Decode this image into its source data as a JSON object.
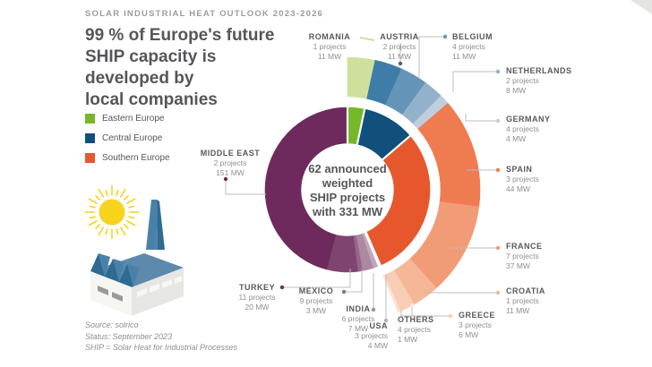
{
  "header": {
    "kicker": "SOLAR INDUSTRIAL HEAT OUTLOOK 2023-2026",
    "headline_lines": [
      "99 % of Europe's future",
      "SHIP capacity is",
      "developed by",
      "local companies"
    ]
  },
  "legend": {
    "items": [
      {
        "label": "Eastern Europe",
        "color": "#76B82A"
      },
      {
        "label": "Central Europe",
        "color": "#10507A"
      },
      {
        "label": "Southern Europe",
        "color": "#E7572E"
      }
    ]
  },
  "center_label": {
    "lines": [
      "62 announced",
      "weighted",
      "SHIP projects",
      "with 331 MW"
    ]
  },
  "source": {
    "lines": [
      "Source: solrico",
      "Status: September 2023",
      "SHIP = Solar Heat for Industrial Processes"
    ]
  },
  "illustration": {
    "name": "sun-and-factory",
    "sun_color": "#F8D31C",
    "roof_color": "#4A81A8"
  },
  "chart_data": {
    "type": "donut",
    "title": "62 announced weighted SHIP projects with 331 MW",
    "weighted_by": "MW",
    "total_projects": 62,
    "total_mw_label": "331 MW",
    "legend_position": "left",
    "region_colors": {
      "eastern": "#76B82A",
      "central": "#10507A",
      "southern": "#E7572E"
    },
    "countries": [
      {
        "id": "romania",
        "name": "ROMANIA",
        "projects": 1,
        "projects_label": "1 projects",
        "mw": 11,
        "mw_label": "11 MW",
        "region": "eastern",
        "inner_color": "#76B82A",
        "outer_color": "#CFE09E"
      },
      {
        "id": "austria",
        "name": "AUSTRIA",
        "projects": 2,
        "projects_label": "2 projects",
        "mw": 11,
        "mw_label": "11 MW",
        "region": "central",
        "inner_color": "#10507A",
        "outer_color": "#3F7CA8"
      },
      {
        "id": "belgium",
        "name": "BELGIUM",
        "projects": 4,
        "projects_label": "4 projects",
        "mw": 11,
        "mw_label": "11 MW",
        "region": "central",
        "inner_color": "#10507A",
        "outer_color": "#6495B8"
      },
      {
        "id": "netherlands",
        "name": "NETHERLANDS",
        "projects": 2,
        "projects_label": "2 projects",
        "mw": 8,
        "mw_label": "8 MW",
        "region": "central",
        "inner_color": "#10507A",
        "outer_color": "#92B2CC"
      },
      {
        "id": "germany",
        "name": "GERMANY",
        "projects": 4,
        "projects_label": "4 projects",
        "mw": 4,
        "mw_label": "4 MW",
        "region": "central",
        "inner_color": "#10507A",
        "outer_color": "#BFCEDD"
      },
      {
        "id": "spain",
        "name": "SPAIN",
        "projects": 3,
        "projects_label": "3 projects",
        "mw": 44,
        "mw_label": "44 MW",
        "region": "southern",
        "inner_color": "#E7572E",
        "outer_color": "#EF7B50"
      },
      {
        "id": "france",
        "name": "FRANCE",
        "projects": 7,
        "projects_label": "7 projects",
        "mw": 37,
        "mw_label": "37 MW",
        "region": "southern",
        "inner_color": "#E7572E",
        "outer_color": "#F29B77"
      },
      {
        "id": "croatia",
        "name": "CROATIA",
        "projects": 1,
        "projects_label": "1 projects",
        "mw": 11,
        "mw_label": "11 MW",
        "region": "southern",
        "inner_color": "#E7572E",
        "outer_color": "#F5B795"
      },
      {
        "id": "greece",
        "name": "GREECE",
        "projects": 3,
        "projects_label": "3 projects",
        "mw": 6,
        "mw_label": "6 MW",
        "region": "southern",
        "inner_color": "#E7572E",
        "outer_color": "#F8CDB5"
      },
      {
        "id": "others",
        "name": "OTHERS",
        "projects": 4,
        "projects_label": "4 projects",
        "mw": 1,
        "mw_label": "1 MW",
        "region": "others",
        "inner_color": "#F8CDB5",
        "outer_color": "#FBE1D3"
      },
      {
        "id": "usa",
        "name": "USA",
        "projects": 3,
        "projects_label": "3 projects",
        "mw": 4,
        "mw_label": "4 MW",
        "region": "international",
        "inner_color": "#C2A6BC",
        "outer_color": null
      },
      {
        "id": "india",
        "name": "INDIA",
        "projects": 6,
        "projects_label": "6 projects",
        "mw": 7,
        "mw_label": "7 MW",
        "region": "international",
        "inner_color": "#AC88A3",
        "outer_color": null
      },
      {
        "id": "mexico",
        "name": "MEXICO",
        "projects": 9,
        "projects_label": "9 projects",
        "mw": 3,
        "mw_label": "3 MW",
        "region": "international",
        "inner_color": "#966689",
        "outer_color": null
      },
      {
        "id": "turkey",
        "name": "TURKEY",
        "projects": 11,
        "projects_label": "11 projects",
        "mw": 20,
        "mw_label": "20 MW",
        "region": "international",
        "inner_color": "#7F4470",
        "outer_color": null
      },
      {
        "id": "middle_east",
        "name": "MIDDLE EAST",
        "projects": 2,
        "projects_label": "2 projects",
        "mw": 151,
        "mw_label": "151 MW",
        "region": "international",
        "inner_color": "#6E2A5C",
        "outer_color": null
      }
    ]
  }
}
